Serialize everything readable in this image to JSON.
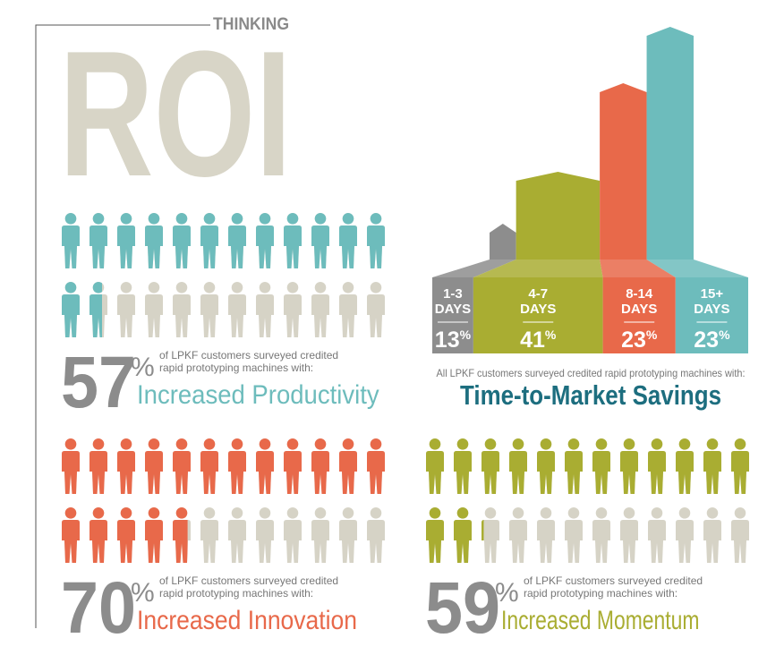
{
  "header": {
    "kicker": "THINKING",
    "title": "ROI"
  },
  "percent_sign": "%",
  "chart_data": [
    {
      "type": "pictograph",
      "value": 57,
      "color": "#6dbcbc",
      "empty_color": "#d6d3c6",
      "caption": "of LPKF customers surveyed credited rapid prototyping machines with:",
      "headline": "Increased Productivity"
    },
    {
      "type": "pictograph",
      "value": 70,
      "color": "#e8694a",
      "empty_color": "#d6d3c6",
      "caption": "of LPKF customers surveyed credited rapid prototyping machines with:",
      "headline": "Increased Innovation"
    },
    {
      "type": "pictograph",
      "value": 59,
      "color": "#a9ad32",
      "empty_color": "#d6d3c6",
      "caption": "of LPKF customers surveyed credited rapid prototyping machines with:",
      "headline": "Increased Momentum"
    },
    {
      "type": "bar",
      "title": "Time-to-Market Savings",
      "subtitle": "All LPKF customers surveyed credited rapid prototyping machines with:",
      "categories": [
        "1-3 DAYS",
        "4-7 DAYS",
        "8-14 DAYS",
        "15+ DAYS"
      ],
      "values": [
        13,
        41,
        23,
        23
      ],
      "colors": [
        "#8d8d8d",
        "#a9ad32",
        "#e8694a",
        "#6dbcbc"
      ]
    }
  ]
}
